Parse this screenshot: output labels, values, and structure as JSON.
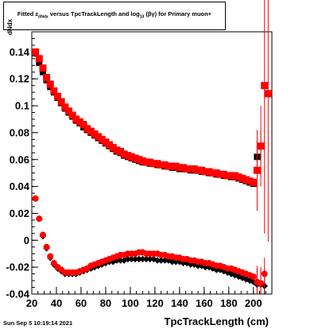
{
  "title": {
    "prefix": "Fitted  z",
    "sub": "dNdx",
    "middle": "  versus TpcTrackLength and log",
    "sub2": "10",
    "suffix": "(βγ) for Primary muon+"
  },
  "y_axis_label": "dNdx",
  "x_axis_label": "TpcTrackLength (cm)",
  "datestamp": "Sun Sep  5 10:19:14 2021",
  "colors": {
    "black_series": "#000000",
    "red_series": "#ff0000",
    "axis": "#000000"
  },
  "chart_data": {
    "type": "scatter",
    "xlim": [
      20,
      215
    ],
    "ylim": [
      -0.04,
      0.155
    ],
    "x_ticks": [
      20,
      40,
      60,
      80,
      100,
      120,
      140,
      160,
      180,
      200
    ],
    "y_ticks": [
      -0.04,
      -0.02,
      0,
      0.02,
      0.04,
      0.06,
      0.08,
      0.1,
      0.12,
      0.14
    ],
    "x_tick_labels": [
      "20",
      "40",
      "60",
      "80",
      "100",
      "120",
      "140",
      "160",
      "180",
      "200"
    ],
    "y_tick_labels": [
      "-0.04",
      "-0.02",
      "0",
      "0.02",
      "0.04",
      "0.06",
      "0.08",
      "0.1",
      "0.12",
      "0.14"
    ],
    "series": [
      {
        "color": "black",
        "x": [
          23,
          26,
          29,
          32,
          35,
          38,
          41,
          44,
          47,
          50,
          53,
          56,
          59,
          62,
          65,
          68,
          71,
          74,
          77,
          80,
          83,
          86,
          89,
          92,
          95,
          98,
          101,
          104,
          107,
          110,
          113,
          116,
          119,
          122,
          125,
          128,
          131,
          134,
          137,
          140,
          143,
          146,
          149,
          152,
          155,
          158,
          161,
          164,
          167,
          170,
          173,
          176,
          179,
          182,
          185,
          188,
          191,
          194,
          197,
          200,
          203,
          206,
          209,
          212
        ],
        "y": [
          0.139,
          0.132,
          0.125,
          0.119,
          0.114,
          0.11,
          0.106,
          0.102,
          0.098,
          0.095,
          0.092,
          0.089,
          0.087,
          0.084,
          0.082,
          0.08,
          0.078,
          0.076,
          0.074,
          0.072,
          0.07,
          0.068,
          0.066,
          0.065,
          0.063,
          0.062,
          0.061,
          0.06,
          0.059,
          0.058,
          0.058,
          0.057,
          0.057,
          0.056,
          0.056,
          0.055,
          0.055,
          0.054,
          0.054,
          0.053,
          0.053,
          0.053,
          0.052,
          0.052,
          0.052,
          0.051,
          0.051,
          0.05,
          0.05,
          0.049,
          0.049,
          0.048,
          0.048,
          0.047,
          0.047,
          0.046,
          0.045,
          0.044,
          0.043,
          0.042,
          0.062,
          0.07,
          null,
          null
        ]
      },
      {
        "color": "red",
        "x": [
          23,
          26,
          29,
          32,
          35,
          38,
          41,
          44,
          47,
          50,
          53,
          56,
          59,
          62,
          65,
          68,
          71,
          74,
          77,
          80,
          83,
          86,
          89,
          92,
          95,
          98,
          101,
          104,
          107,
          110,
          113,
          116,
          119,
          122,
          125,
          128,
          131,
          134,
          137,
          140,
          143,
          146,
          149,
          152,
          155,
          158,
          161,
          164,
          167,
          170,
          173,
          176,
          179,
          182,
          185,
          188,
          191,
          194,
          197,
          200,
          203,
          206,
          209,
          212
        ],
        "y": [
          0.14,
          0.135,
          0.128,
          0.121,
          0.116,
          0.111,
          0.107,
          0.103,
          0.099,
          0.096,
          0.093,
          0.09,
          0.088,
          0.086,
          0.083,
          0.081,
          0.079,
          0.077,
          0.075,
          0.073,
          0.071,
          0.069,
          0.067,
          0.066,
          0.064,
          0.063,
          0.062,
          0.061,
          0.06,
          0.059,
          0.058,
          0.058,
          0.057,
          0.057,
          0.056,
          0.056,
          0.055,
          0.055,
          0.055,
          0.054,
          0.054,
          0.053,
          0.053,
          0.053,
          0.052,
          0.052,
          0.051,
          0.051,
          0.05,
          0.05,
          0.049,
          0.049,
          0.048,
          0.048,
          0.048,
          0.047,
          0.046,
          0.045,
          0.044,
          0.043,
          0.052,
          0.07,
          0.115,
          0.109
        ]
      },
      {
        "color": "black",
        "x": [
          23,
          26,
          29,
          32,
          35,
          38,
          41,
          44,
          47,
          50,
          53,
          56,
          59,
          62,
          65,
          68,
          71,
          74,
          77,
          80,
          83,
          86,
          89,
          92,
          95,
          98,
          101,
          104,
          107,
          110,
          113,
          116,
          119,
          122,
          125,
          128,
          131,
          134,
          137,
          140,
          143,
          146,
          149,
          152,
          155,
          158,
          161,
          164,
          167,
          170,
          173,
          176,
          179,
          182,
          185,
          188,
          191,
          194,
          197,
          200,
          203,
          206,
          209,
          212
        ],
        "y": [
          0.031,
          0.016,
          0.003,
          -0.006,
          -0.013,
          -0.018,
          -0.021,
          -0.023,
          -0.025,
          -0.025,
          -0.025,
          -0.025,
          -0.024,
          -0.023,
          -0.022,
          -0.021,
          -0.02,
          -0.019,
          -0.018,
          -0.017,
          -0.016,
          -0.016,
          -0.015,
          -0.015,
          -0.015,
          -0.014,
          -0.014,
          -0.014,
          -0.014,
          -0.014,
          -0.014,
          -0.014,
          -0.014,
          -0.015,
          -0.015,
          -0.015,
          -0.015,
          -0.016,
          -0.016,
          -0.016,
          -0.017,
          -0.017,
          -0.018,
          -0.018,
          -0.019,
          -0.019,
          -0.02,
          -0.02,
          -0.021,
          -0.022,
          -0.022,
          -0.023,
          -0.024,
          -0.025,
          -0.026,
          -0.027,
          -0.028,
          -0.029,
          -0.03,
          -0.031,
          -0.033,
          -0.033,
          -0.034,
          null
        ]
      },
      {
        "color": "red",
        "x": [
          23,
          26,
          29,
          32,
          35,
          38,
          41,
          44,
          47,
          50,
          53,
          56,
          59,
          62,
          65,
          68,
          71,
          74,
          77,
          80,
          83,
          86,
          89,
          92,
          95,
          98,
          101,
          104,
          107,
          110,
          113,
          116,
          119,
          122,
          125,
          128,
          131,
          134,
          137,
          140,
          143,
          146,
          149,
          152,
          155,
          158,
          161,
          164,
          167,
          170,
          173,
          176,
          179,
          182,
          185,
          188,
          191,
          194,
          197,
          200,
          203,
          206,
          209,
          212
        ],
        "y": [
          0.031,
          0.016,
          0.004,
          -0.005,
          -0.012,
          -0.017,
          -0.02,
          -0.022,
          -0.024,
          -0.024,
          -0.024,
          -0.024,
          -0.023,
          -0.022,
          -0.021,
          -0.019,
          -0.018,
          -0.017,
          -0.016,
          -0.015,
          -0.014,
          -0.013,
          -0.012,
          -0.011,
          -0.011,
          -0.01,
          -0.01,
          -0.01,
          -0.009,
          -0.009,
          -0.01,
          -0.01,
          -0.01,
          -0.01,
          -0.011,
          -0.011,
          -0.012,
          -0.012,
          -0.013,
          -0.013,
          -0.014,
          -0.014,
          -0.015,
          -0.015,
          -0.016,
          -0.016,
          -0.017,
          -0.017,
          -0.018,
          -0.019,
          -0.019,
          -0.02,
          -0.021,
          -0.021,
          -0.022,
          -0.023,
          -0.024,
          -0.025,
          -0.026,
          -0.027,
          -0.031,
          -0.032,
          -0.025,
          null
        ]
      }
    ]
  }
}
